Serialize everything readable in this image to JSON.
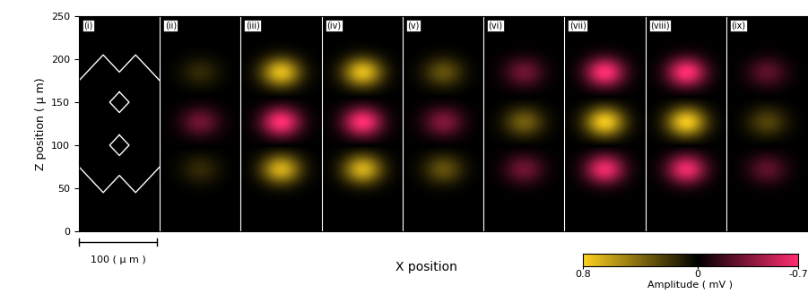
{
  "chart_data": {
    "type": "heatmap",
    "y_label": "Z position ( μ m)",
    "x_label": "X position",
    "ylim": [
      0,
      250
    ],
    "yticks": [
      0,
      50,
      100,
      150,
      200,
      250
    ],
    "scale_bar_label": "100 ( μ m )",
    "colorbar": {
      "lim": [
        0.8,
        -0.7
      ],
      "ticks": [
        0.8,
        0,
        -0.7
      ],
      "label": "Amplitude ( mV )"
    },
    "panels": [
      {
        "label": "(i)",
        "lobes": []
      },
      {
        "label": "(ii)",
        "lobes": [
          {
            "z": 185,
            "amplitude": 0.15
          },
          {
            "z": 127,
            "amplitude": -0.3
          },
          {
            "z": 72,
            "amplitude": 0.15
          }
        ]
      },
      {
        "label": "(iii)",
        "lobes": [
          {
            "z": 185,
            "amplitude": 0.7
          },
          {
            "z": 127,
            "amplitude": -0.7
          },
          {
            "z": 72,
            "amplitude": 0.65
          }
        ]
      },
      {
        "label": "(iv)",
        "lobes": [
          {
            "z": 185,
            "amplitude": 0.7
          },
          {
            "z": 127,
            "amplitude": -0.7
          },
          {
            "z": 72,
            "amplitude": 0.65
          }
        ]
      },
      {
        "label": "(v)",
        "lobes": [
          {
            "z": 185,
            "amplitude": 0.3
          },
          {
            "z": 127,
            "amplitude": -0.35
          },
          {
            "z": 72,
            "amplitude": 0.3
          }
        ]
      },
      {
        "label": "(vi)",
        "lobes": [
          {
            "z": 185,
            "amplitude": -0.3
          },
          {
            "z": 127,
            "amplitude": 0.35
          },
          {
            "z": 72,
            "amplitude": -0.3
          }
        ]
      },
      {
        "label": "(vii)",
        "lobes": [
          {
            "z": 185,
            "amplitude": -0.7
          },
          {
            "z": 127,
            "amplitude": 0.75
          },
          {
            "z": 72,
            "amplitude": -0.65
          }
        ]
      },
      {
        "label": "(viii)",
        "lobes": [
          {
            "z": 185,
            "amplitude": -0.7
          },
          {
            "z": 127,
            "amplitude": 0.75
          },
          {
            "z": 72,
            "amplitude": -0.65
          }
        ]
      },
      {
        "label": "(ix)",
        "lobes": [
          {
            "z": 185,
            "amplitude": -0.25
          },
          {
            "z": 127,
            "amplitude": 0.25
          },
          {
            "z": 72,
            "amplitude": -0.25
          }
        ]
      }
    ]
  }
}
